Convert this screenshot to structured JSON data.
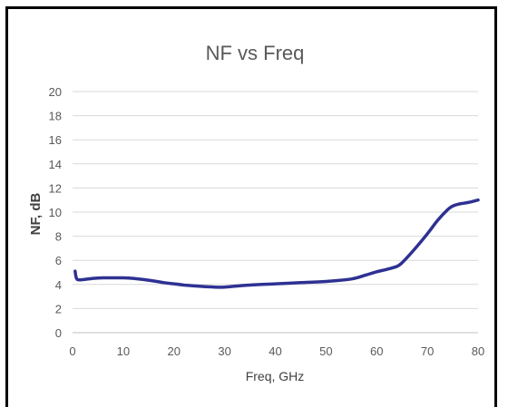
{
  "chart_data": {
    "type": "line",
    "title": "NF vs Freq",
    "xlabel": "Freq, GHz",
    "ylabel": "NF, dB",
    "xlim": [
      0,
      80
    ],
    "ylim": [
      0,
      20
    ],
    "x_ticks": [
      "0",
      "10",
      "20",
      "30",
      "40",
      "50",
      "60",
      "70",
      "80"
    ],
    "y_ticks": [
      "0",
      "2",
      "4",
      "6",
      "8",
      "10",
      "12",
      "14",
      "16",
      "18",
      "20"
    ],
    "grid": "horizontal",
    "legend": "none",
    "series": [
      {
        "color": "#2e3192",
        "x": [
          0.5,
          0.7,
          1,
          2,
          4,
          6,
          8,
          10,
          12,
          15,
          18,
          20,
          22,
          25,
          28,
          30,
          32,
          35,
          40,
          45,
          50,
          55,
          58,
          60,
          62,
          64,
          65,
          67,
          70,
          72,
          74,
          75,
          76,
          78,
          80
        ],
        "y": [
          5.1,
          4.6,
          4.4,
          4.4,
          4.5,
          4.55,
          4.55,
          4.55,
          4.5,
          4.35,
          4.15,
          4.05,
          3.95,
          3.85,
          3.78,
          3.78,
          3.85,
          3.95,
          4.05,
          4.15,
          4.25,
          4.45,
          4.8,
          5.05,
          5.25,
          5.5,
          5.8,
          6.7,
          8.2,
          9.3,
          10.2,
          10.5,
          10.65,
          10.8,
          11.0
        ]
      }
    ]
  }
}
